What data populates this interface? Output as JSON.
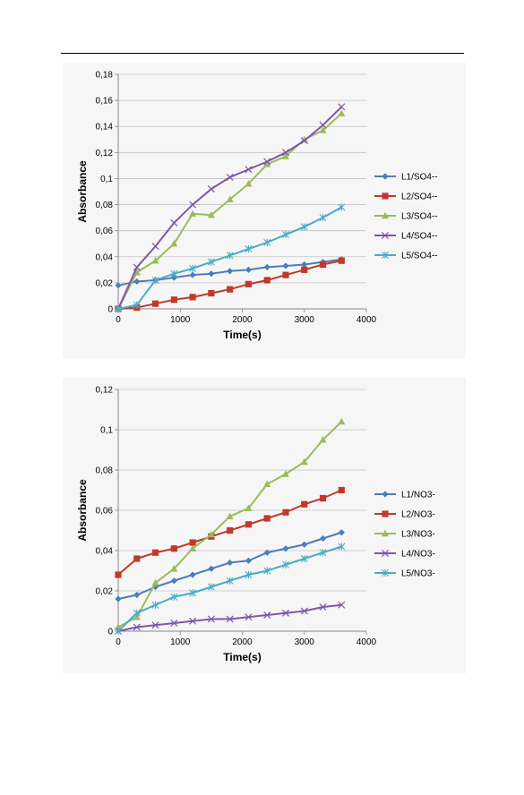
{
  "page": {
    "rule_color": "#000000"
  },
  "chart_data": [
    {
      "type": "line",
      "xlabel": "Time(s)",
      "ylabel": "Absorbance",
      "xlim": [
        0,
        4000
      ],
      "ylim": [
        0,
        0.18
      ],
      "x_ticks": [
        "0",
        "1000",
        "2000",
        "3000",
        "4000"
      ],
      "y_ticks": [
        "0",
        "0,02",
        "0,04",
        "0,06",
        "0,08",
        "0,1",
        "0,12",
        "0,14",
        "0,16",
        "0,18"
      ],
      "grid": true,
      "legend_position": "right",
      "series": [
        {
          "name": "L1/SO4--",
          "color": "#4a7ebb",
          "marker": "diamond",
          "x": [
            0,
            300,
            600,
            900,
            1200,
            1500,
            1800,
            2100,
            2400,
            2700,
            3000,
            3300,
            3600
          ],
          "y": [
            0.018,
            0.021,
            0.022,
            0.024,
            0.026,
            0.027,
            0.029,
            0.03,
            0.032,
            0.033,
            0.034,
            0.036,
            0.038
          ]
        },
        {
          "name": "L2/SO4--",
          "color": "#c0392b",
          "marker": "square",
          "x": [
            0,
            300,
            600,
            900,
            1200,
            1500,
            1800,
            2100,
            2400,
            2700,
            3000,
            3300,
            3600
          ],
          "y": [
            0.0,
            0.001,
            0.004,
            0.007,
            0.009,
            0.012,
            0.015,
            0.019,
            0.022,
            0.026,
            0.03,
            0.034,
            0.037
          ]
        },
        {
          "name": "L3/SO4--",
          "color": "#9bbb59",
          "marker": "triangle",
          "x": [
            0,
            300,
            600,
            900,
            1200,
            1500,
            1800,
            2100,
            2400,
            2700,
            3000,
            3300,
            3600
          ],
          "y": [
            0.0,
            0.028,
            0.037,
            0.05,
            0.073,
            0.072,
            0.084,
            0.096,
            0.111,
            0.117,
            0.13,
            0.137,
            0.15
          ]
        },
        {
          "name": "L4/SO4--",
          "color": "#7e57a8",
          "marker": "x",
          "x": [
            0,
            300,
            600,
            900,
            1200,
            1500,
            1800,
            2100,
            2400,
            2700,
            3000,
            3300,
            3600
          ],
          "y": [
            0.0,
            0.032,
            0.048,
            0.066,
            0.08,
            0.092,
            0.101,
            0.107,
            0.113,
            0.12,
            0.129,
            0.141,
            0.155
          ]
        },
        {
          "name": "L5/SO4--",
          "color": "#4bacc6",
          "marker": "star",
          "x": [
            0,
            300,
            600,
            900,
            1200,
            1500,
            1800,
            2100,
            2400,
            2700,
            3000,
            3300,
            3600
          ],
          "y": [
            0.0,
            0.003,
            0.022,
            0.027,
            0.031,
            0.036,
            0.041,
            0.046,
            0.051,
            0.057,
            0.063,
            0.07,
            0.078
          ]
        }
      ]
    },
    {
      "type": "line",
      "xlabel": "Time(s)",
      "ylabel": "Absorbance",
      "xlim": [
        0,
        4000
      ],
      "ylim": [
        0,
        0.12
      ],
      "x_ticks": [
        "0",
        "1000",
        "2000",
        "3000",
        "4000"
      ],
      "y_ticks": [
        "0",
        "0,02",
        "0,04",
        "0,06",
        "0,08",
        "0,1",
        "0,12"
      ],
      "grid": true,
      "legend_position": "right",
      "series": [
        {
          "name": "L1/NO3-",
          "color": "#4a7ebb",
          "marker": "diamond",
          "x": [
            0,
            300,
            600,
            900,
            1200,
            1500,
            1800,
            2100,
            2400,
            2700,
            3000,
            3300,
            3600
          ],
          "y": [
            0.016,
            0.018,
            0.022,
            0.025,
            0.028,
            0.031,
            0.034,
            0.035,
            0.039,
            0.041,
            0.043,
            0.046,
            0.049
          ]
        },
        {
          "name": "L2/NO3-",
          "color": "#c0392b",
          "marker": "square",
          "x": [
            0,
            300,
            600,
            900,
            1200,
            1500,
            1800,
            2100,
            2400,
            2700,
            3000,
            3300,
            3600
          ],
          "y": [
            0.028,
            0.036,
            0.039,
            0.041,
            0.044,
            0.047,
            0.05,
            0.053,
            0.056,
            0.059,
            0.063,
            0.066,
            0.07
          ]
        },
        {
          "name": "L3/NO3-",
          "color": "#9bbb59",
          "marker": "triangle",
          "x": [
            0,
            300,
            600,
            900,
            1200,
            1500,
            1800,
            2100,
            2400,
            2700,
            3000,
            3300,
            3600
          ],
          "y": [
            0.002,
            0.007,
            0.024,
            0.031,
            0.041,
            0.048,
            0.057,
            0.061,
            0.073,
            0.078,
            0.084,
            0.095,
            0.104
          ]
        },
        {
          "name": "L4/NO3-",
          "color": "#7e57a8",
          "marker": "x",
          "x": [
            0,
            300,
            600,
            900,
            1200,
            1500,
            1800,
            2100,
            2400,
            2700,
            3000,
            3300,
            3600
          ],
          "y": [
            0.0,
            0.002,
            0.003,
            0.004,
            0.005,
            0.006,
            0.006,
            0.007,
            0.008,
            0.009,
            0.01,
            0.012,
            0.013
          ]
        },
        {
          "name": "L5/NO3-",
          "color": "#4bacc6",
          "marker": "star",
          "x": [
            0,
            300,
            600,
            900,
            1200,
            1500,
            1800,
            2100,
            2400,
            2700,
            3000,
            3300,
            3600
          ],
          "y": [
            0.0,
            0.009,
            0.013,
            0.017,
            0.019,
            0.022,
            0.025,
            0.028,
            0.03,
            0.033,
            0.036,
            0.039,
            0.042
          ]
        }
      ]
    }
  ]
}
